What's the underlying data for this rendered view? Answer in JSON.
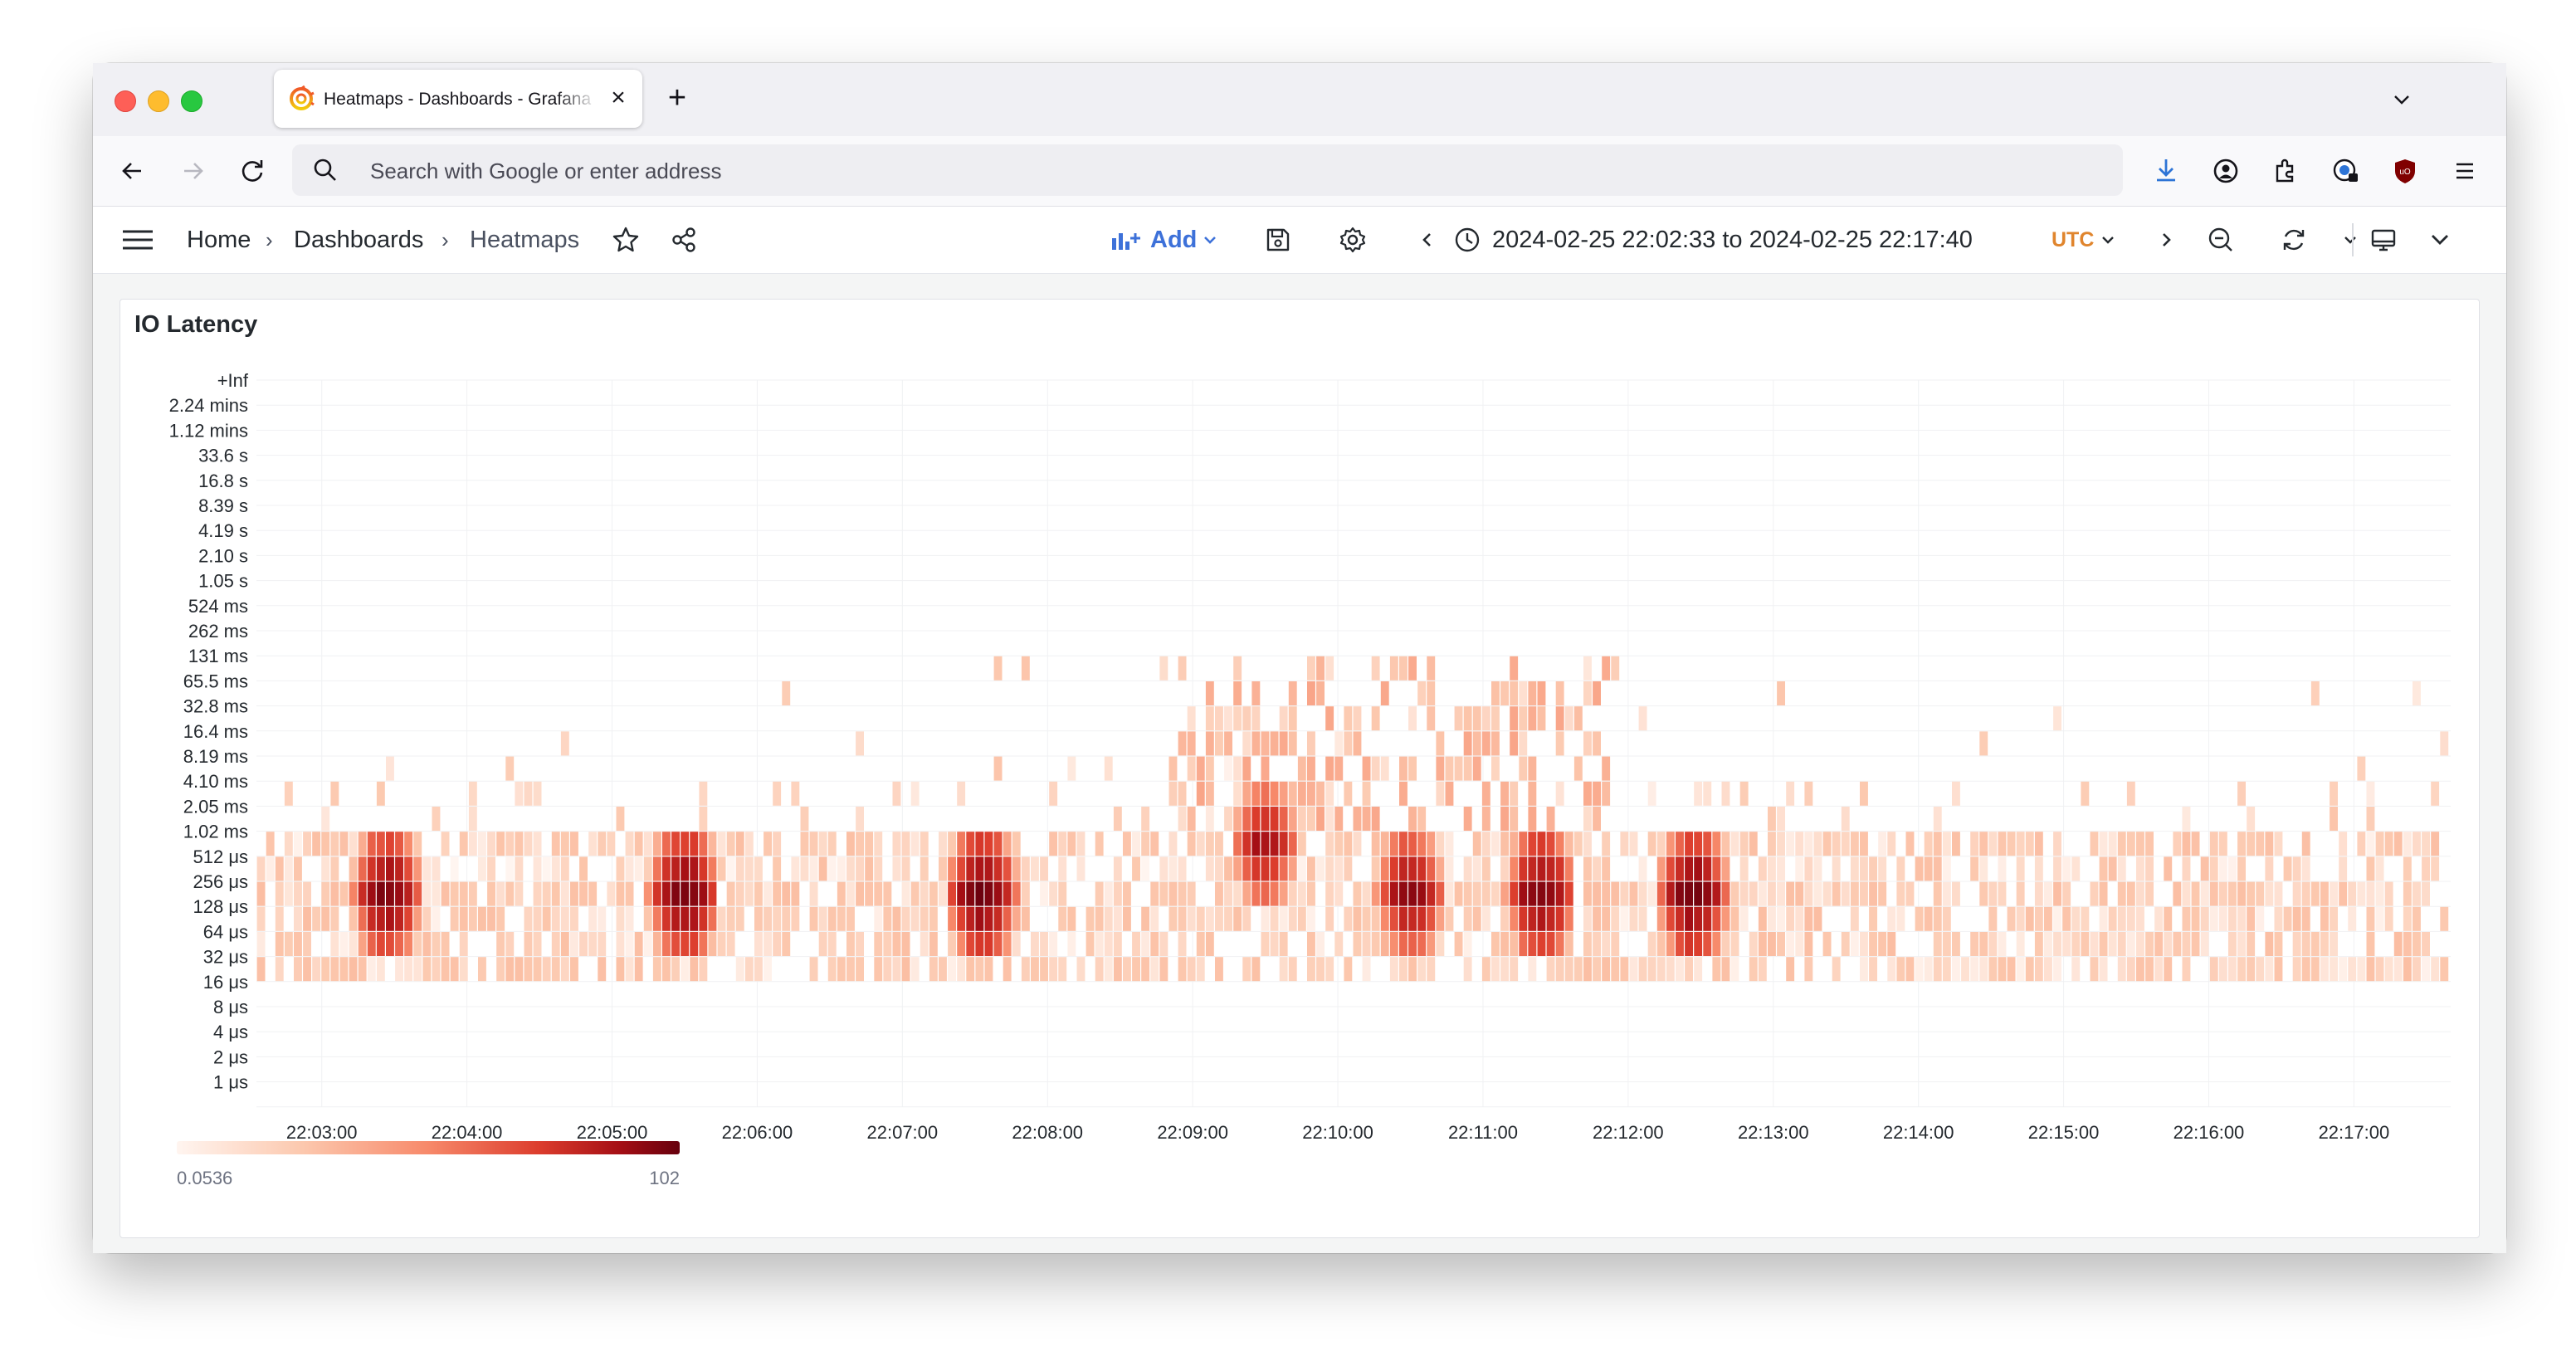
{
  "browser": {
    "tab_title": "Heatmaps - Dashboards - Grafana",
    "new_tab_icon": "plus-icon",
    "url_placeholder": "Search with Google or enter address"
  },
  "grafana": {
    "breadcrumb": [
      "Home",
      "Dashboards",
      "Heatmaps"
    ],
    "add_label": "Add",
    "time_from": "2024-02-25 22:02:33",
    "time_to": "2024-02-25 22:17:40",
    "time_sep": "to",
    "timezone": "UTC"
  },
  "panel": {
    "title": "IO Latency",
    "legend_min": "0.0536",
    "legend_max": "102"
  },
  "colors": {
    "accent_blue": "#3d71d9",
    "timezone_orange": "#e0852d",
    "heat_low": "#fff5f0",
    "heat_high": "#67000d"
  },
  "chart_data": {
    "type": "heatmap",
    "title": "IO Latency",
    "y_buckets": [
      "+Inf",
      "2.24 mins",
      "1.12 mins",
      "33.6 s",
      "16.8 s",
      "8.39 s",
      "4.19 s",
      "2.10 s",
      "1.05 s",
      "524 ms",
      "262 ms",
      "131 ms",
      "65.5 ms",
      "32.8 ms",
      "16.4 ms",
      "8.19 ms",
      "4.10 ms",
      "2.05 ms",
      "1.02 ms",
      "512 μs",
      "256 μs",
      "128 μs",
      "64 μs",
      "32 μs",
      "16 μs",
      "8 μs",
      "4 μs",
      "2 μs",
      "1 μs"
    ],
    "x_ticks": [
      "22:03:00",
      "22:04:00",
      "22:05:00",
      "22:06:00",
      "22:07:00",
      "22:08:00",
      "22:09:00",
      "22:10:00",
      "22:11:00",
      "22:12:00",
      "22:13:00",
      "22:14:00",
      "22:15:00",
      "22:16:00",
      "22:17:00"
    ],
    "x_range": [
      "22:02:33",
      "22:17:40"
    ],
    "color_scale": {
      "min": 0.0536,
      "max": 102,
      "scheme": "Reds"
    },
    "hotspots": [
      {
        "x": "22:03:27",
        "y": "256 μs",
        "value": 75
      },
      {
        "x": "22:05:30",
        "y": "256 μs",
        "value": 95
      },
      {
        "x": "22:07:33",
        "y": "256 μs",
        "value": 102
      },
      {
        "x": "22:09:30",
        "y": "1.02 ms",
        "value": 30
      },
      {
        "x": "22:10:30",
        "y": "256 μs",
        "value": 50
      },
      {
        "x": "22:11:24",
        "y": "256 μs",
        "value": 80
      },
      {
        "x": "22:12:27",
        "y": "256 μs",
        "value": 95
      }
    ]
  }
}
